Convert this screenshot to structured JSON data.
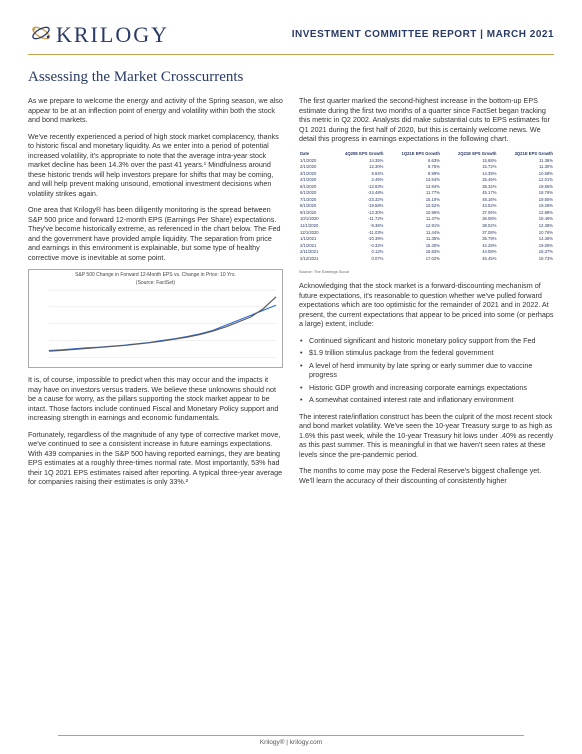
{
  "brand": {
    "name": "KRILOGY",
    "logo_colors": {
      "ring1": "#c9a050",
      "ring2": "#2a3a66",
      "accent": "#b8863b"
    }
  },
  "header": {
    "title": "INVESTMENT COMMITTEE REPORT | MARCH 2021",
    "color": "#2a3a66"
  },
  "article": {
    "title": "Assessing the Market Crosscurrents"
  },
  "left": {
    "p1": "As we prepare to welcome the energy and activity of the Spring season, we also appear to be at an inflection point of energy and volatility within both the stock and bond markets.",
    "p2": "We've recently experienced a period of high stock market complacency, thanks to historic fiscal and monetary liquidity. As we enter into a period of potential increased volatility, it's appropriate to note that the average intra-year stock market decline has been 14.3% over the past 41 years.¹ Mindfulness around these historic trends will help investors prepare for shifts that may be coming, and will help prevent making unsound, emotional investment decisions when volatility strikes again.",
    "p3": "One area that Krilogy® has been diligently monitoring is the spread between S&P 500 price and forward 12-month EPS (Earnings Per Share) expectations. They've become historically extreme, as referenced in the chart below.  The Fed and the government have provided ample liquidity. The separation from price and earnings in this environment is explainable, but some type of healthy corrective move is inevitable at some point.",
    "p4": "It is, of course, impossible to predict when this may occur and the impacts it may have on investors versus traders. We believe these unknowns should not be a cause for worry, as the pillars supporting the stock market appear to be intact. Those factors include continued Fiscal and Monetary Policy support and increasing strength in earnings and economic fundamentals.",
    "p5": "Fortunately, regardless of the magnitude of any type of corrective market move, we've continued to see a consistent increase in future earnings expectations.  With 439 companies in the S&P 500 having reported earnings, they are beating EPS estimates at a roughly three-times normal rate. Most importantly, 53% had their 1Q 2021 EPS estimates raised after reporting. A typical three-year average for companies raising their estimates is only 33%.²"
  },
  "chart": {
    "title": "S&P 500 Change in Forward 12-Month EPS vs. Change in Price: 10 Yrs.",
    "source": "(Source: FactSet)",
    "series": [
      {
        "name": "Forward EPS",
        "color": "#2a6bd4",
        "points": [
          20,
          22,
          25,
          28,
          30,
          33,
          36,
          40,
          44,
          50,
          55,
          62,
          70,
          80,
          95,
          110,
          125,
          140,
          155
        ]
      },
      {
        "name": "Price",
        "color": "#5a5a5a",
        "points": [
          18,
          20,
          23,
          26,
          29,
          32,
          35,
          39,
          43,
          48,
          54,
          60,
          68,
          78,
          90,
          105,
          120,
          145,
          180
        ]
      }
    ],
    "ylim": [
      0,
      200
    ],
    "background": "#ffffff",
    "grid_color": "#dcdcdc",
    "border_color": "#aaaaaa"
  },
  "right": {
    "p1": "The first quarter marked the second-highest increase in the bottom-up EPS estimate during the first two months of a quarter since FactSet began tracking this metric in Q2 2002. Analysts did make substantial cuts to EPS estimates for Q1 2021 during the first half of 2020, but this is certainly welcome news.  We detail this progress in earnings expectations in the following chart.",
    "p2": "Acknowledging that the stock market is a forward-discounting mechanism of future expectations, it's reasonable to question whether we've pulled forward expectations which are too optimistic for the remainder of 2021 and in 2022. At present, the current expectations that appear to be priced into some (or perhaps a large) extent, include:",
    "p3": "The interest rate/inflation construct has been the culprit of the most recent stock and bond market volatility. We've seen the 10-year Treasury surge to as high as 1.6% this past week, while the 10-year Treasury hit lows under .40% as recently as this past summer.  This is meaningful in that we haven't seen rates at these levels since the pre-pandemic period.",
    "p4": "The months to come may pose the Federal Reserve's biggest challenge yet. We'll learn the accuracy of their discounting of consistently higher"
  },
  "table": {
    "source": "Source: The Earnings Scout",
    "headers": [
      "Date",
      "4Q20E EPS Growth",
      "1Q21E EPS Growth",
      "2Q21E EPS Growth",
      "3Q21E EPS Growth"
    ],
    "rows": [
      [
        "1/1/2020",
        "14.35%",
        "6.63%",
        "15.68%",
        "11.36%"
      ],
      [
        "2/1/2020",
        "12.30%",
        "8.75%",
        "15.72%",
        "11.30%"
      ],
      [
        "3/1/2020",
        "8.84%",
        "8.99%",
        "14.39%",
        "10.58%"
      ],
      [
        "4/1/2020",
        "2.46%",
        "14.54%",
        "25.45%",
        "12.01%"
      ],
      [
        "5/1/2020",
        "-13.83%",
        "13.94%",
        "38.34%",
        "19.55%"
      ],
      [
        "6/1/2020",
        "-24.48%",
        "11.77%",
        "45.17%",
        "18.76%"
      ],
      [
        "7/1/2020",
        "-23.32%",
        "15.10%",
        "48.16%",
        "19.65%"
      ],
      [
        "8/1/2020",
        "-19.58%",
        "10.52%",
        "43.52%",
        "19.28%"
      ],
      [
        "9/1/2020",
        "-13.30%",
        "10.96%",
        "37.06%",
        "12.88%"
      ],
      [
        "10/1/2020",
        "-11.72%",
        "11.37%",
        "36.08%",
        "18.46%"
      ],
      [
        "11/1/2020",
        "-9.36%",
        "12.91%",
        "38.02%",
        "12.38%"
      ],
      [
        "12/1/2020",
        "-11.03%",
        "11.44%",
        "37.08%",
        "10.76%"
      ],
      [
        "1/1/2021",
        "-10.39%",
        "11.35%",
        "35.79%",
        "14.36%"
      ],
      [
        "2/1/2021",
        "-0.32%",
        "15.30%",
        "42.28%",
        "19.05%"
      ],
      [
        "2/11/2021",
        "0.12%",
        "16.83%",
        "44.08%",
        "18.37%"
      ],
      [
        "2/12/2021",
        "0.07%",
        "17.02%",
        "45.45%",
        "18.73%"
      ]
    ]
  },
  "bullets": [
    "Continued significant and historic monetary policy support from the Fed",
    "$1.9 trillion stimulus package from the federal government",
    "A level of herd immunity by late spring or early summer due to vaccine progress",
    "Historic GDP growth and increasing corporate earnings expectations",
    "A somewhat contained interest rate and inflationary environment"
  ],
  "footer": {
    "text": "Krilogy® | krilogy.com"
  }
}
